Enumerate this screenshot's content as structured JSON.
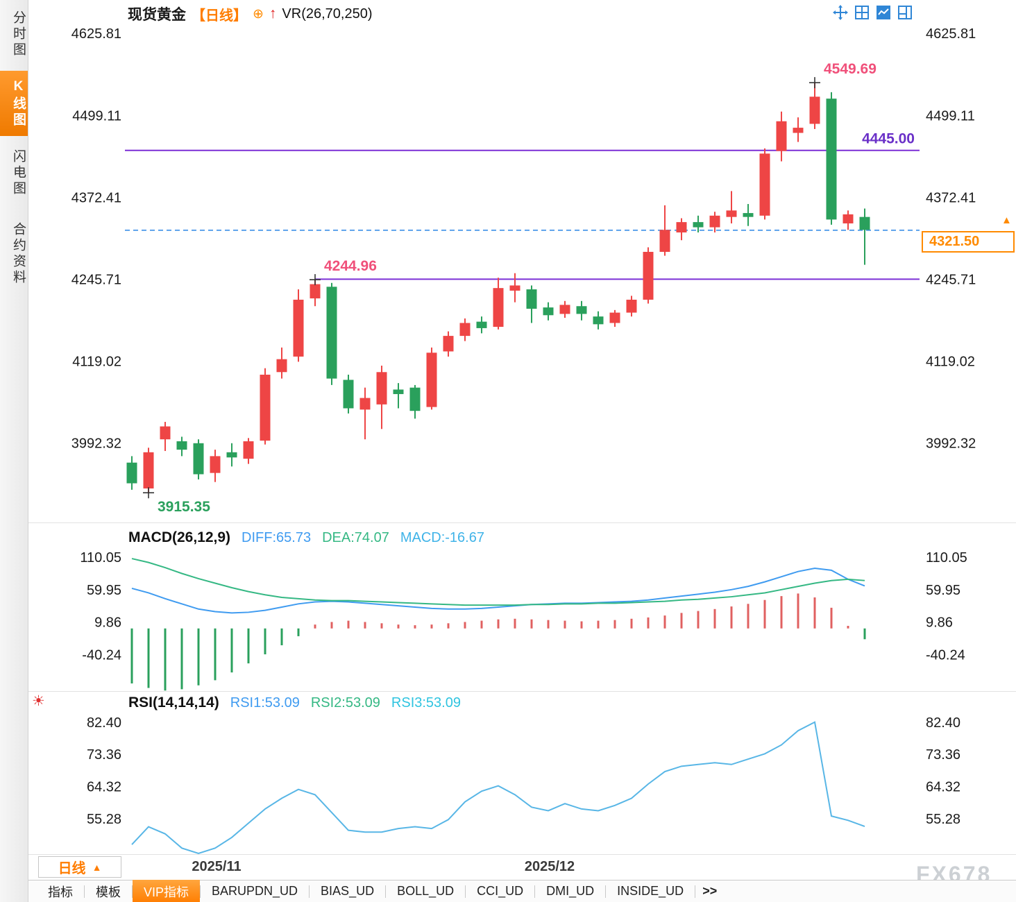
{
  "app": {
    "watermark": "FX678"
  },
  "sidebar": {
    "items": [
      {
        "label": "分时图",
        "active": false
      },
      {
        "label": "K线图",
        "active": true
      },
      {
        "label": "闪电图",
        "active": false
      },
      {
        "label": "合约资料",
        "active": false
      }
    ]
  },
  "header": {
    "symbol": "现货黄金",
    "period": "【日线】",
    "indicator": "VR(26,70,250)"
  },
  "icons": {
    "plus_circle": "⊕",
    "up_arrow": "↑",
    "latest": "▲",
    "period_caret": "▲",
    "settings": "☀",
    "more_tabs": ">>"
  },
  "price_tag": {
    "value": "4321.50"
  },
  "period_selector": {
    "label": "日线"
  },
  "xaxis": {
    "labels": [
      "2025/11",
      "2025/12"
    ]
  },
  "bottom_tabs": [
    {
      "label": "指标",
      "active": false
    },
    {
      "label": "模板",
      "active": false
    },
    {
      "label": "VIP指标",
      "active": true
    },
    {
      "label": "BARUPDN_UD",
      "active": false
    },
    {
      "label": "BIAS_UD",
      "active": false
    },
    {
      "label": "BOLL_UD",
      "active": false
    },
    {
      "label": "CCI_UD",
      "active": false
    },
    {
      "label": "DMI_UD",
      "active": false
    },
    {
      "label": "INSIDE_UD",
      "active": false
    }
  ],
  "colors": {
    "up": "#ee4545",
    "up_hist": "#e06060",
    "down": "#2aa05c",
    "purple": "#7b2fd6",
    "purple_label": "#6a30c8",
    "pink": "#f0507a",
    "dashed": "#3b8fe8",
    "diff_line": "#3f9bf0",
    "dea_line": "#35b884",
    "rsi_line": "#58b6e6",
    "accent": "#ff7d00",
    "tick_text": "#1a1a1a"
  },
  "chart_data": [
    {
      "type": "candlestick",
      "title": "现货黄金 日线",
      "ylim": [
        3878,
        4640
      ],
      "y_ticks": [
        "4625.81",
        "4499.11",
        "4372.41",
        "4245.71",
        "4119.02",
        "3992.32"
      ],
      "current_price": 4321.5,
      "hlines": [
        {
          "value": 4445.0,
          "label": "4445.00",
          "from_index": -1
        },
        {
          "value": 4245.71,
          "label": "",
          "from_index": 11
        }
      ],
      "markers": [
        {
          "index": 1,
          "at": "low",
          "value": 3915.35,
          "label": "3915.35",
          "color_key": "down"
        },
        {
          "index": 11,
          "at": "high",
          "value": 4244.96,
          "label": "4244.96",
          "color_key": "pink"
        },
        {
          "index": 41,
          "at": "high",
          "value": 4549.69,
          "label": "4549.69",
          "color_key": "pink"
        }
      ],
      "candles": [
        [
          3962,
          3972,
          3920,
          3930
        ],
        [
          3922,
          3985,
          3915.35,
          3978
        ],
        [
          3998,
          4025,
          3980,
          4018
        ],
        [
          3995,
          4002,
          3972,
          3982
        ],
        [
          3992,
          3998,
          3936,
          3944
        ],
        [
          3946,
          3982,
          3932,
          3972
        ],
        [
          3978,
          3992,
          3956,
          3970
        ],
        [
          3968,
          4000,
          3960,
          3995
        ],
        [
          3996,
          4108,
          3990,
          4098
        ],
        [
          4102,
          4140,
          4092,
          4122
        ],
        [
          4126,
          4230,
          4118,
          4214
        ],
        [
          4216,
          4244.96,
          4204,
          4238
        ],
        [
          4234,
          4240,
          4082,
          4092
        ],
        [
          4090,
          4098,
          4038,
          4046
        ],
        [
          4044,
          4078,
          3998,
          4062
        ],
        [
          4052,
          4112,
          4014,
          4102
        ],
        [
          4075,
          4085,
          4046,
          4068
        ],
        [
          4078,
          4082,
          4030,
          4042
        ],
        [
          4048,
          4140,
          4044,
          4132
        ],
        [
          4134,
          4165,
          4126,
          4158
        ],
        [
          4158,
          4185,
          4150,
          4178
        ],
        [
          4180,
          4188,
          4162,
          4170
        ],
        [
          4172,
          4248,
          4168,
          4232
        ],
        [
          4228,
          4255,
          4210,
          4236
        ],
        [
          4230,
          4236,
          4178,
          4200
        ],
        [
          4202,
          4210,
          4182,
          4190
        ],
        [
          4192,
          4212,
          4186,
          4206
        ],
        [
          4204,
          4212,
          4182,
          4192
        ],
        [
          4188,
          4196,
          4168,
          4176
        ],
        [
          4178,
          4198,
          4172,
          4194
        ],
        [
          4194,
          4220,
          4188,
          4214
        ],
        [
          4214,
          4295,
          4208,
          4288
        ],
        [
          4288,
          4360,
          4282,
          4322
        ],
        [
          4318,
          4340,
          4306,
          4334
        ],
        [
          4334,
          4344,
          4318,
          4326
        ],
        [
          4326,
          4350,
          4318,
          4344
        ],
        [
          4342,
          4382,
          4332,
          4352
        ],
        [
          4348,
          4362,
          4328,
          4342
        ],
        [
          4344,
          4448,
          4338,
          4440
        ],
        [
          4444,
          4505,
          4428,
          4490
        ],
        [
          4472,
          4496,
          4458,
          4480
        ],
        [
          4486,
          4549.69,
          4478,
          4528
        ],
        [
          4525,
          4535,
          4330,
          4338
        ],
        [
          4332,
          4352,
          4322,
          4346
        ],
        [
          4342,
          4355,
          4268,
          4322
        ]
      ]
    },
    {
      "type": "macd",
      "title": "MACD(26,12,9)",
      "legend": {
        "diff": "DIFF:65.73",
        "dea": "DEA:74.07",
        "macd": "MACD:-16.67"
      },
      "ylim": [
        -85,
        122
      ],
      "y_ticks": [
        "110.05",
        "59.95",
        "9.86",
        "-40.24"
      ],
      "diff": [
        62,
        55,
        46,
        38,
        30,
        26,
        24,
        25,
        28,
        33,
        38,
        41,
        42,
        41,
        39,
        37,
        35,
        33,
        31,
        30,
        30,
        31,
        33,
        35,
        37,
        38,
        39,
        39,
        40,
        41,
        42,
        44,
        47,
        50,
        53,
        56,
        60,
        65,
        72,
        80,
        88,
        93,
        90,
        76,
        65.73
      ],
      "dea": [
        108,
        102,
        94,
        85,
        77,
        70,
        63,
        57,
        52,
        48,
        46,
        44,
        43,
        43,
        42,
        41,
        40,
        39,
        38,
        37,
        36,
        36,
        36,
        36,
        37,
        37,
        38,
        38,
        39,
        39,
        40,
        41,
        42,
        44,
        45,
        47,
        49,
        52,
        55,
        60,
        65,
        70,
        74,
        76,
        74.07
      ],
      "hist": [
        -85,
        -92,
        -96,
        -94,
        -88,
        -80,
        -68,
        -54,
        -40,
        -26,
        -12,
        6,
        10,
        12,
        10,
        8,
        6,
        5,
        6,
        8,
        10,
        12,
        14,
        15,
        14,
        13,
        12,
        11,
        12,
        13,
        15,
        17,
        20,
        24,
        27,
        30,
        34,
        38,
        44,
        50,
        54,
        48,
        32,
        4,
        -16.67
      ]
    },
    {
      "type": "line",
      "title": "RSI(14,14,14)",
      "legend": {
        "rsi1": "RSI1:53.09",
        "rsi2": "RSI2:53.09",
        "rsi3": "RSI3:53.09"
      },
      "ylim": [
        45.5,
        84.5
      ],
      "y_ticks": [
        "82.40",
        "73.36",
        "64.32",
        "55.28"
      ],
      "values": [
        48,
        53,
        51,
        47,
        45.5,
        47,
        50,
        54,
        58,
        61,
        63.5,
        62,
        57,
        52,
        51.5,
        51.5,
        52.5,
        53,
        52.5,
        55,
        60,
        63,
        64.5,
        62,
        58.5,
        57.5,
        59.5,
        58,
        57.5,
        59,
        61,
        65,
        68.5,
        70,
        70.5,
        71,
        70.5,
        72,
        73.5,
        76,
        80,
        82.4,
        56,
        54.8,
        53.09
      ]
    }
  ]
}
